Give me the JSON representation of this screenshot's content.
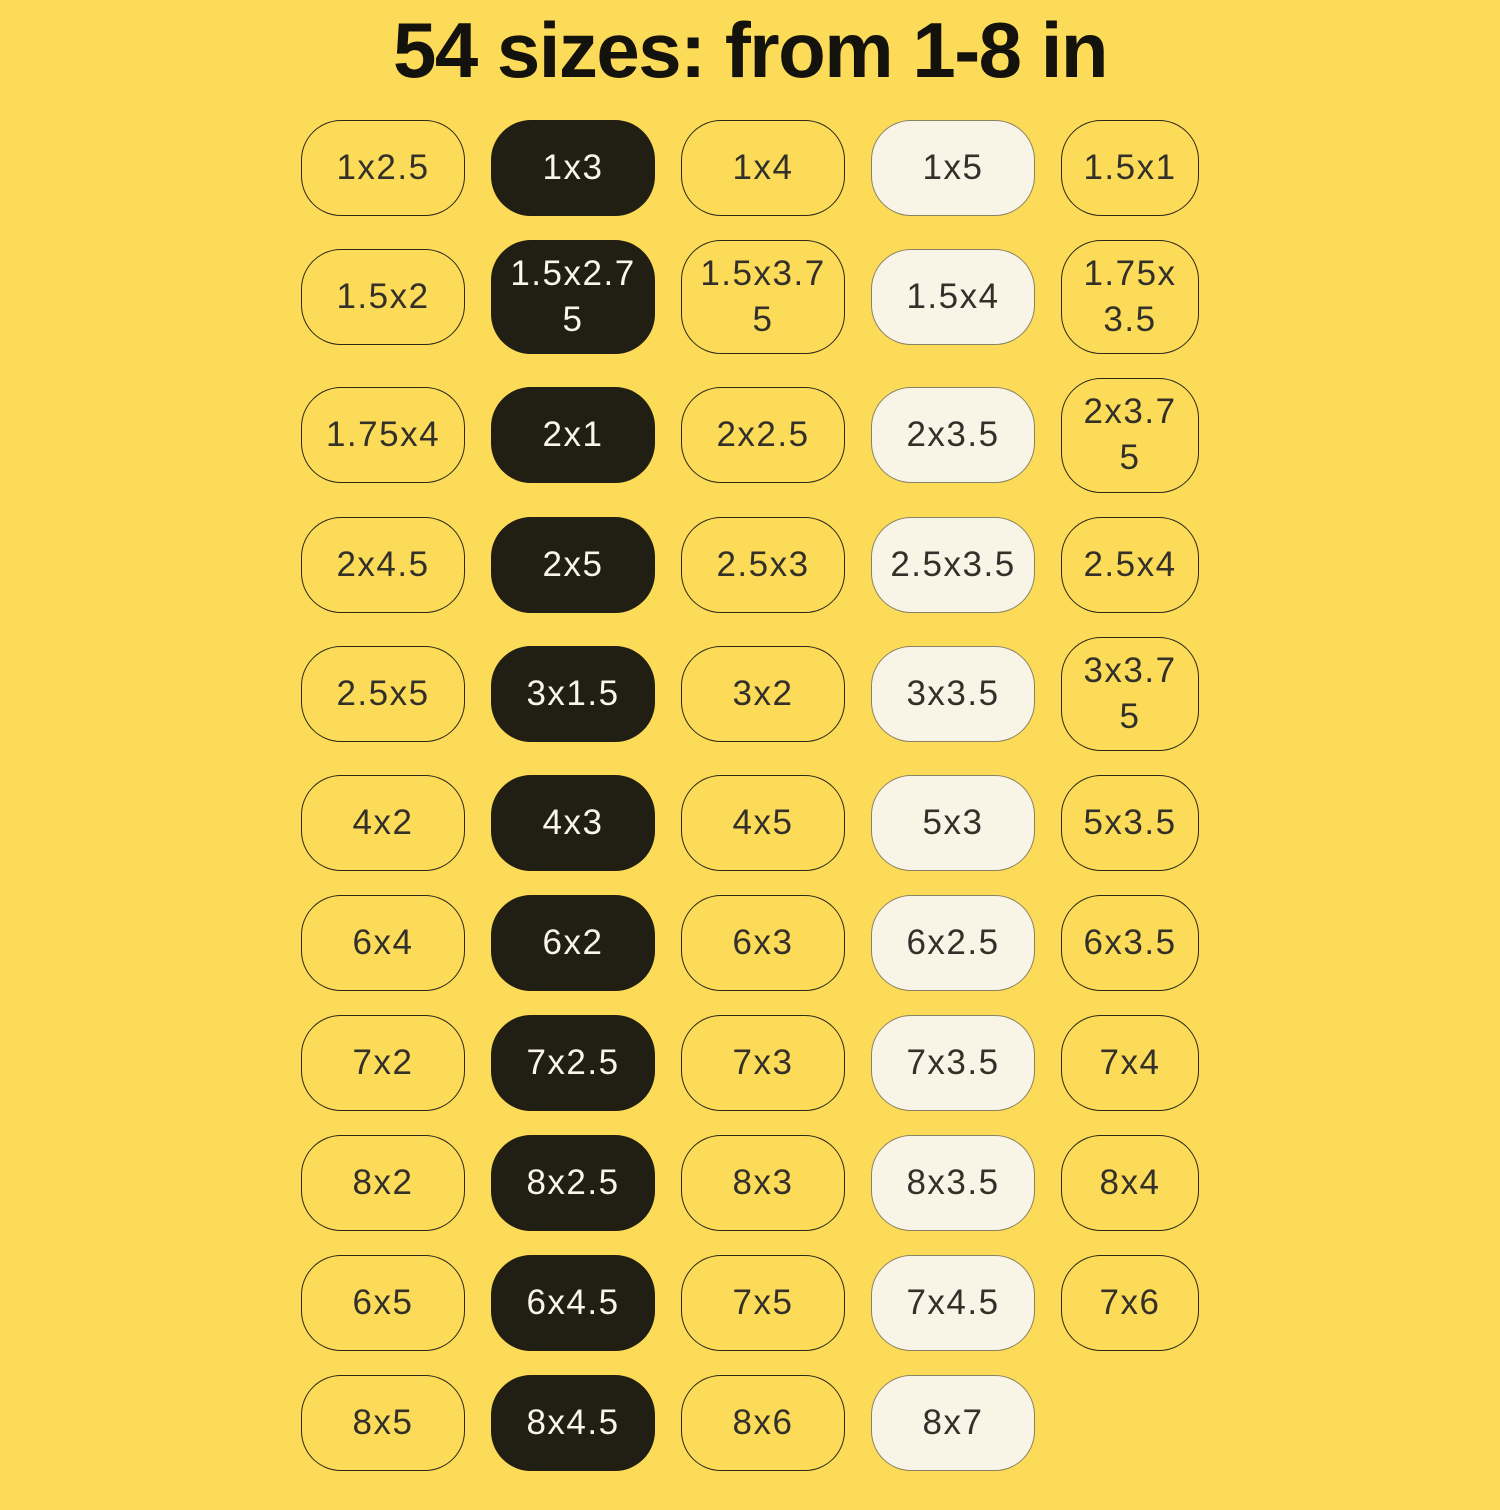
{
  "title": "54 sizes: from 1-8 in",
  "colors": {
    "background": "#FCDB58",
    "title_text": "#14120C",
    "dark_pill": "#211E13",
    "dark_pill_text": "#FAF6EA",
    "cream_pill": "#F8F4E6",
    "cream_pill_border": "#8A8265",
    "pill_border": "#2B2816",
    "pill_text": "#33302A"
  },
  "sizes": [
    {
      "label": "1x2.5",
      "variant": "outline"
    },
    {
      "label": "1x3",
      "variant": "dark"
    },
    {
      "label": "1x4",
      "variant": "outline"
    },
    {
      "label": "1x5",
      "variant": "cream"
    },
    {
      "label": "1.5x1",
      "variant": "outline"
    },
    {
      "label": "1.5x2",
      "variant": "outline"
    },
    {
      "label": "1.5x2.75",
      "variant": "dark"
    },
    {
      "label": "1.5x3.75",
      "variant": "outline"
    },
    {
      "label": "1.5x4",
      "variant": "cream"
    },
    {
      "label": "1.75x3.5",
      "variant": "outline"
    },
    {
      "label": "1.75x4",
      "variant": "outline"
    },
    {
      "label": "2x1",
      "variant": "dark"
    },
    {
      "label": "2x2.5",
      "variant": "outline"
    },
    {
      "label": "2x3.5",
      "variant": "cream"
    },
    {
      "label": "2x3.75",
      "variant": "outline"
    },
    {
      "label": "2x4.5",
      "variant": "outline"
    },
    {
      "label": "2x5",
      "variant": "dark"
    },
    {
      "label": "2.5x3",
      "variant": "outline"
    },
    {
      "label": "2.5x3.5",
      "variant": "cream"
    },
    {
      "label": "2.5x4",
      "variant": "outline"
    },
    {
      "label": "2.5x5",
      "variant": "outline"
    },
    {
      "label": "3x1.5",
      "variant": "dark"
    },
    {
      "label": "3x2",
      "variant": "outline"
    },
    {
      "label": "3x3.5",
      "variant": "cream"
    },
    {
      "label": "3x3.75",
      "variant": "outline"
    },
    {
      "label": "4x2",
      "variant": "outline"
    },
    {
      "label": "4x3",
      "variant": "dark"
    },
    {
      "label": "4x5",
      "variant": "outline"
    },
    {
      "label": "5x3",
      "variant": "cream"
    },
    {
      "label": "5x3.5",
      "variant": "outline"
    },
    {
      "label": "6x4",
      "variant": "outline"
    },
    {
      "label": "6x2",
      "variant": "dark"
    },
    {
      "label": "6x3",
      "variant": "outline"
    },
    {
      "label": "6x2.5",
      "variant": "cream"
    },
    {
      "label": "6x3.5",
      "variant": "outline"
    },
    {
      "label": "7x2",
      "variant": "outline"
    },
    {
      "label": "7x2.5",
      "variant": "dark"
    },
    {
      "label": "7x3",
      "variant": "outline"
    },
    {
      "label": "7x3.5",
      "variant": "cream"
    },
    {
      "label": "7x4",
      "variant": "outline"
    },
    {
      "label": "8x2",
      "variant": "outline"
    },
    {
      "label": "8x2.5",
      "variant": "dark"
    },
    {
      "label": "8x3",
      "variant": "outline"
    },
    {
      "label": "8x3.5",
      "variant": "cream"
    },
    {
      "label": "8x4",
      "variant": "outline"
    },
    {
      "label": "6x5",
      "variant": "outline"
    },
    {
      "label": "6x4.5",
      "variant": "dark"
    },
    {
      "label": "7x5",
      "variant": "outline"
    },
    {
      "label": "7x4.5",
      "variant": "cream"
    },
    {
      "label": "7x6",
      "variant": "outline"
    },
    {
      "label": "8x5",
      "variant": "outline"
    },
    {
      "label": "8x4.5",
      "variant": "dark"
    },
    {
      "label": "8x6",
      "variant": "outline"
    },
    {
      "label": "8x7",
      "variant": "cream"
    }
  ]
}
